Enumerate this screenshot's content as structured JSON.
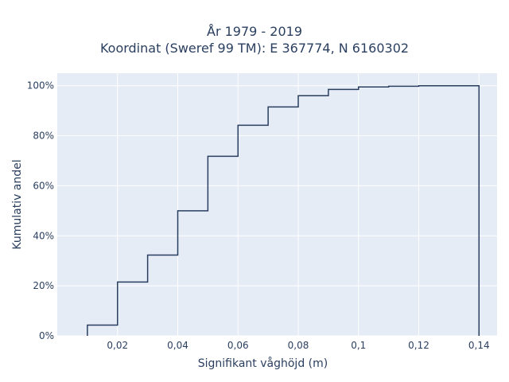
{
  "chart_data": {
    "type": "line",
    "line_shape": "step",
    "title": "År 1979 - 2019",
    "subtitle": "Koordinat (Sweref 99 TM): E 367774, N 6160302",
    "xlabel": "Signifikant våghöjd (m)",
    "ylabel": "Kumulativ andel",
    "xlim": [
      0.0,
      0.146
    ],
    "ylim": [
      0,
      1.05
    ],
    "x_ticks": [
      0.02,
      0.04,
      0.06,
      0.08,
      0.1,
      0.12,
      0.14
    ],
    "x_tick_labels": [
      "0,02",
      "0,04",
      "0,06",
      "0,08",
      "0,1",
      "0,12",
      "0,14"
    ],
    "y_ticks": [
      0,
      0.2,
      0.4,
      0.6,
      0.8,
      1.0
    ],
    "y_tick_labels": [
      "0%",
      "20%",
      "40%",
      "60%",
      "80%",
      "100%"
    ],
    "grid": true,
    "background": "#e5ecf6",
    "line_color": "#2a3f5f",
    "series": [
      {
        "x": [
          0.01,
          0.02,
          0.03,
          0.04,
          0.05,
          0.06,
          0.07,
          0.08,
          0.09,
          0.1,
          0.11,
          0.12,
          0.13
        ],
        "y": [
          0.043,
          0.215,
          0.323,
          0.5,
          0.718,
          0.842,
          0.915,
          0.96,
          0.985,
          0.995,
          0.998,
          1.0,
          1.0
        ],
        "end_x": 0.14
      }
    ]
  }
}
